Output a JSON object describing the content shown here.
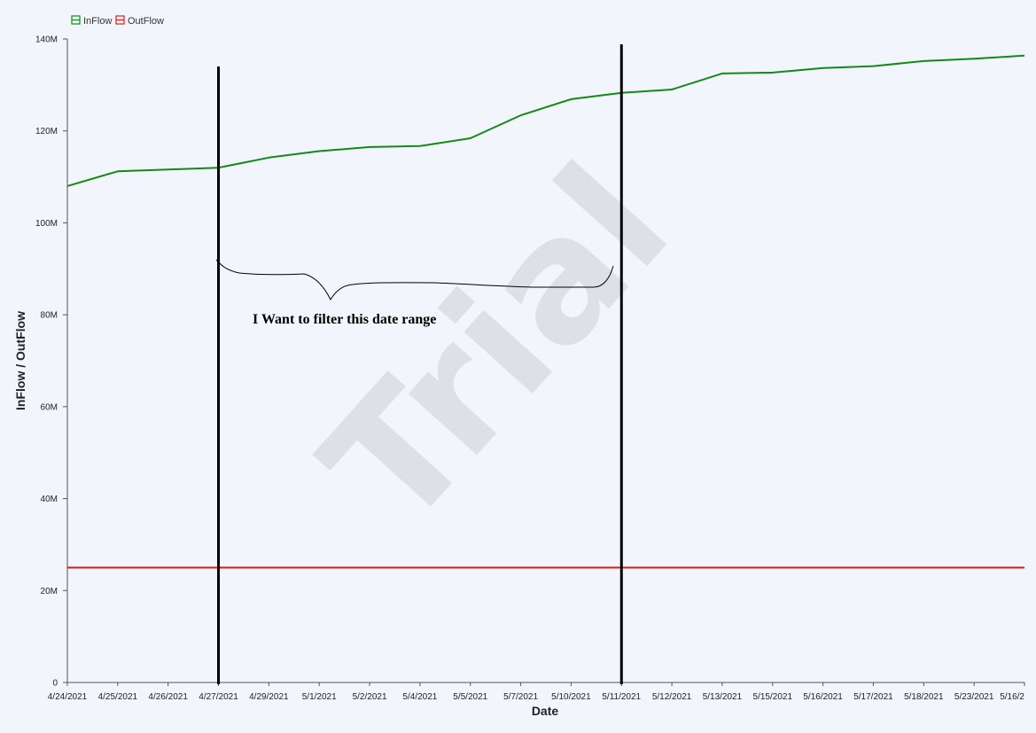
{
  "chart_data": {
    "type": "line",
    "xlabel": "Date",
    "ylabel": "InFlow / OutFlow",
    "ylim": [
      0,
      140000000
    ],
    "yticks": [
      {
        "value": 0,
        "label": "0"
      },
      {
        "value": 20000000,
        "label": "20M"
      },
      {
        "value": 40000000,
        "label": "40M"
      },
      {
        "value": 60000000,
        "label": "60M"
      },
      {
        "value": 80000000,
        "label": "80M"
      },
      {
        "value": 100000000,
        "label": "100M"
      },
      {
        "value": 120000000,
        "label": "120M"
      },
      {
        "value": 140000000,
        "label": "140M"
      }
    ],
    "categories": [
      "4/24/2021",
      "4/25/2021",
      "4/26/2021",
      "4/27/2021",
      "4/29/2021",
      "5/1/2021",
      "5/2/2021",
      "5/4/2021",
      "5/5/2021",
      "5/7/2021",
      "5/10/2021",
      "5/11/2021",
      "5/12/2021",
      "5/13/2021",
      "5/15/2021",
      "5/16/2021",
      "5/17/2021",
      "5/18/2021",
      "5/23/2021",
      "5/16/2"
    ],
    "grid": false,
    "legend_position": "top-left",
    "legend": [
      {
        "name": "InFlow",
        "color": "#138a13"
      },
      {
        "name": "OutFlow",
        "color": "#dd1c1c"
      }
    ],
    "series": [
      {
        "name": "InFlow",
        "color": "#138a13",
        "values": [
          108000000,
          111200000,
          111600000,
          112000000,
          114200000,
          115600000,
          116500000,
          116700000,
          118400000,
          123400000,
          126900000,
          128300000,
          129000000,
          132500000,
          132700000,
          133700000,
          134100000,
          135200000,
          135700000,
          136400000
        ]
      },
      {
        "name": "OutFlow",
        "color": "#dd1c1c",
        "values": [
          25000000,
          25000000,
          25000000,
          25000000,
          25000000,
          25000000,
          25000000,
          25000000,
          25000000,
          25000000,
          25000000,
          25000000,
          25000000,
          25000000,
          25000000,
          25000000,
          25000000,
          25000000,
          25000000,
          25000000
        ]
      }
    ],
    "markers": [
      {
        "category": "4/27/2021"
      },
      {
        "category": "5/11/2021"
      }
    ],
    "annotation": "I Want to filter this date range",
    "watermark": "Trial"
  }
}
